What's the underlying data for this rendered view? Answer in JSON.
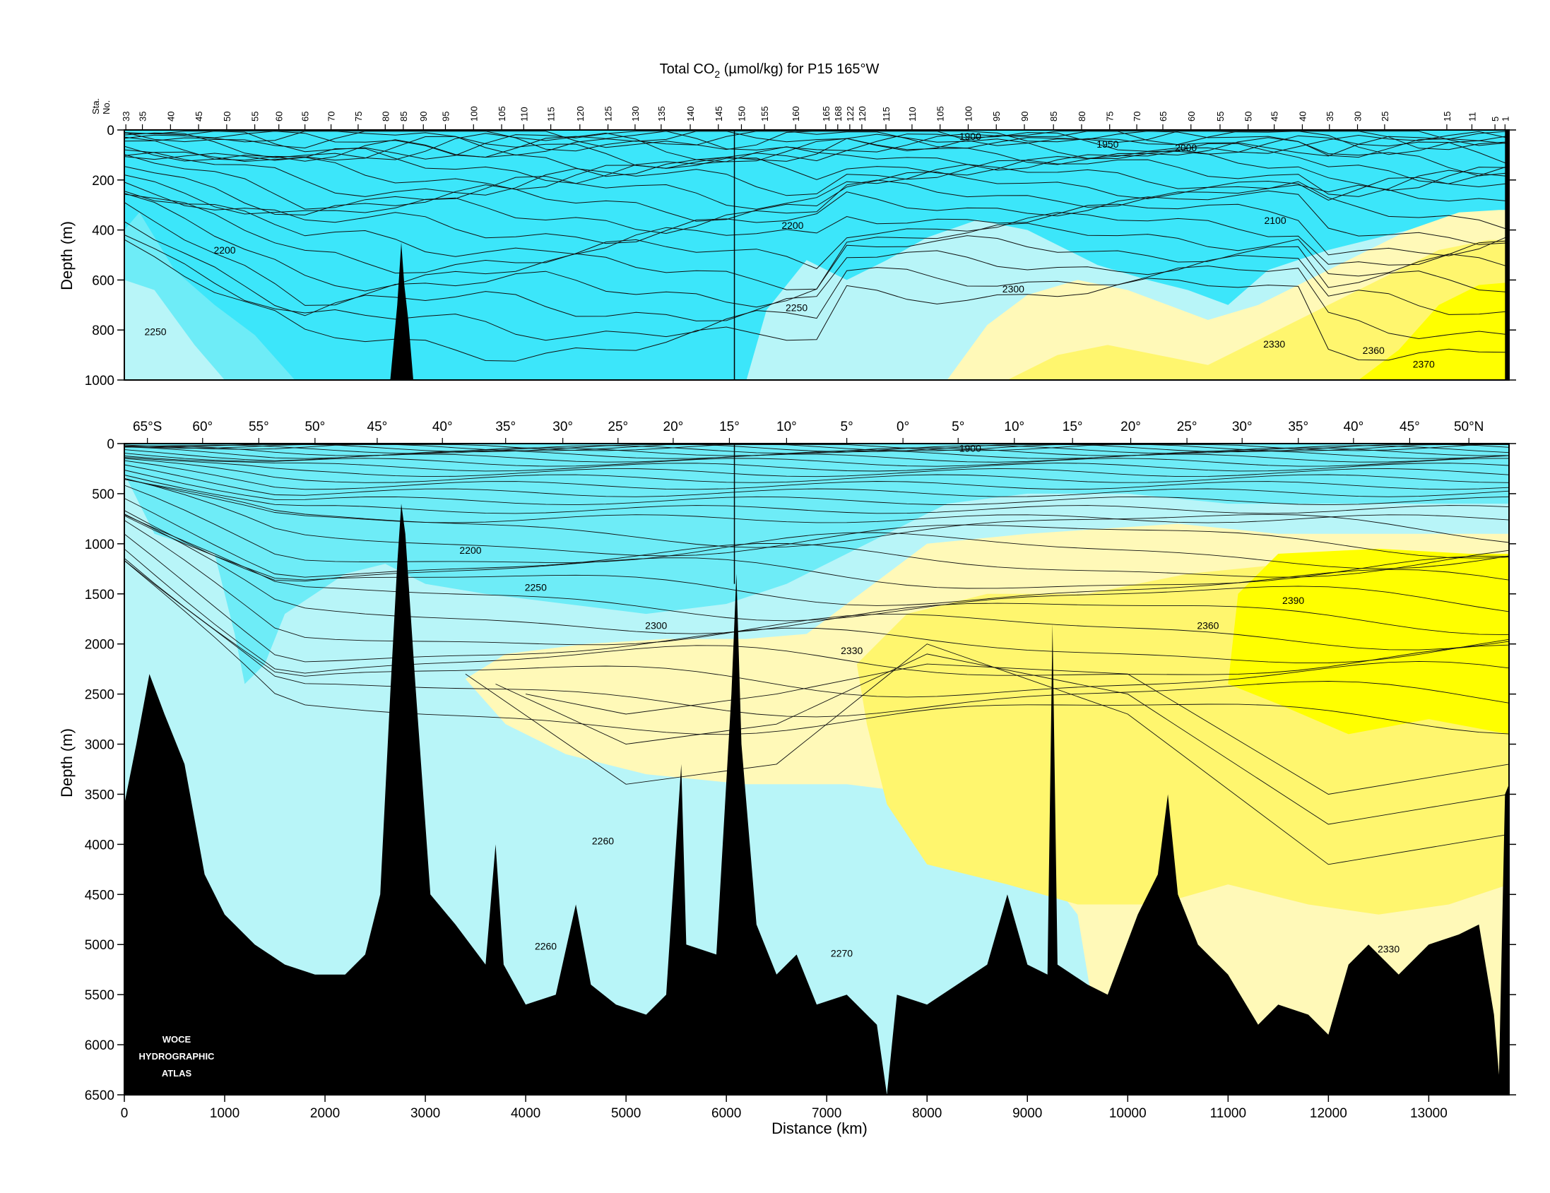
{
  "chart_data": {
    "type": "contour-section",
    "title_main": "Total CO",
    "title_sub": "2",
    "title_rest": " (µmol/kg) for P15 165°W",
    "xlabel": "Distance (km)",
    "ylabel": "Depth (m)",
    "xlim": [
      0,
      13800
    ],
    "x_ticks": [
      0,
      1000,
      2000,
      3000,
      4000,
      5000,
      6000,
      7000,
      8000,
      9000,
      10000,
      11000,
      12000,
      13000
    ],
    "x_tick_labels": [
      "0",
      "1000",
      "2000",
      "3000",
      "4000",
      "5000",
      "6000",
      "7000",
      "8000",
      "9000",
      "10000",
      "11000",
      "12000",
      "13000"
    ],
    "station_axis_label_1": "Sta.",
    "station_axis_label_2": "No.",
    "stations": [
      {
        "label": "33",
        "x": 15
      },
      {
        "label": "35",
        "x": 180
      },
      {
        "label": "40",
        "x": 460
      },
      {
        "label": "45",
        "x": 740
      },
      {
        "label": "50",
        "x": 1020
      },
      {
        "label": "55",
        "x": 1300
      },
      {
        "label": "60",
        "x": 1540
      },
      {
        "label": "65",
        "x": 1800
      },
      {
        "label": "70",
        "x": 2060
      },
      {
        "label": "75",
        "x": 2330
      },
      {
        "label": "80",
        "x": 2600
      },
      {
        "label": "85",
        "x": 2780
      },
      {
        "label": "90",
        "x": 2980
      },
      {
        "label": "95",
        "x": 3200
      },
      {
        "label": "100",
        "x": 3480
      },
      {
        "label": "105",
        "x": 3760
      },
      {
        "label": "110",
        "x": 3980
      },
      {
        "label": "115",
        "x": 4250
      },
      {
        "label": "120",
        "x": 4540
      },
      {
        "label": "125",
        "x": 4820
      },
      {
        "label": "130",
        "x": 5090
      },
      {
        "label": "135",
        "x": 5350
      },
      {
        "label": "140",
        "x": 5640
      },
      {
        "label": "145",
        "x": 5920
      },
      {
        "label": "150",
        "x": 6150
      },
      {
        "label": "155",
        "x": 6380
      },
      {
        "label": "160",
        "x": 6690
      },
      {
        "label": "165",
        "x": 6990
      },
      {
        "label": "168",
        "x": 7110
      },
      {
        "label": "122",
        "x": 7230
      },
      {
        "label": "120",
        "x": 7350
      },
      {
        "label": "115",
        "x": 7590
      },
      {
        "label": "110",
        "x": 7850
      },
      {
        "label": "105",
        "x": 8130
      },
      {
        "label": "100",
        "x": 8410
      },
      {
        "label": "95",
        "x": 8690
      },
      {
        "label": "90",
        "x": 8970
      },
      {
        "label": "85",
        "x": 9260
      },
      {
        "label": "80",
        "x": 9540
      },
      {
        "label": "75",
        "x": 9820
      },
      {
        "label": "70",
        "x": 10090
      },
      {
        "label": "65",
        "x": 10350
      },
      {
        "label": "60",
        "x": 10630
      },
      {
        "label": "55",
        "x": 10920
      },
      {
        "label": "50",
        "x": 11200
      },
      {
        "label": "45",
        "x": 11460
      },
      {
        "label": "40",
        "x": 11740
      },
      {
        "label": "35",
        "x": 12010
      },
      {
        "label": "30",
        "x": 12290
      },
      {
        "label": "25",
        "x": 12560
      },
      {
        "label": "15",
        "x": 13180
      },
      {
        "label": "11",
        "x": 13430
      },
      {
        "label": "5",
        "x": 13660
      },
      {
        "label": "1",
        "x": 13760
      }
    ],
    "latitudes": [
      {
        "label": "65°S",
        "x": 230
      },
      {
        "label": "60°",
        "x": 780
      },
      {
        "label": "55°",
        "x": 1340
      },
      {
        "label": "50°",
        "x": 1900
      },
      {
        "label": "45°",
        "x": 2520
      },
      {
        "label": "40°",
        "x": 3170
      },
      {
        "label": "35°",
        "x": 3800
      },
      {
        "label": "30°",
        "x": 4370
      },
      {
        "label": "25°",
        "x": 4920
      },
      {
        "label": "20°",
        "x": 5470
      },
      {
        "label": "15°",
        "x": 6030
      },
      {
        "label": "10°",
        "x": 6600
      },
      {
        "label": "5°",
        "x": 7200
      },
      {
        "label": "0°",
        "x": 7760
      },
      {
        "label": "5°",
        "x": 8310
      },
      {
        "label": "10°",
        "x": 8870
      },
      {
        "label": "15°",
        "x": 9450
      },
      {
        "label": "20°",
        "x": 10030
      },
      {
        "label": "25°",
        "x": 10590
      },
      {
        "label": "30°",
        "x": 11140
      },
      {
        "label": "35°",
        "x": 11700
      },
      {
        "label": "40°",
        "x": 12250
      },
      {
        "label": "45°",
        "x": 12810
      },
      {
        "label": "50°N",
        "x": 13400
      }
    ],
    "panels": [
      {
        "name": "upper",
        "ylim": [
          0,
          1000
        ],
        "y_ticks": [
          0,
          200,
          400,
          600,
          800,
          1000
        ],
        "y_tick_labels": [
          "0",
          "200",
          "400",
          "600",
          "800",
          "1000"
        ],
        "contour_labels": [
          {
            "text": "1900",
            "x": 8430,
            "y": 40
          },
          {
            "text": "1950",
            "x": 9800,
            "y": 70
          },
          {
            "text": "2000",
            "x": 10580,
            "y": 85
          },
          {
            "text": "2100",
            "x": 11470,
            "y": 375
          },
          {
            "text": "2200",
            "x": 1000,
            "y": 495
          },
          {
            "text": "2200",
            "x": 6660,
            "y": 395
          },
          {
            "text": "2250",
            "x": 6700,
            "y": 725
          },
          {
            "text": "2250",
            "x": 310,
            "y": 820
          },
          {
            "text": "2300",
            "x": 8860,
            "y": 650
          },
          {
            "text": "2330",
            "x": 11460,
            "y": 870
          },
          {
            "text": "2360",
            "x": 12450,
            "y": 895
          },
          {
            "text": "2370",
            "x": 12950,
            "y": 950
          }
        ]
      },
      {
        "name": "lower",
        "ylim": [
          0,
          6500
        ],
        "y_ticks": [
          0,
          500,
          1000,
          1500,
          2000,
          2500,
          3000,
          3500,
          4000,
          4500,
          5000,
          5500,
          6000,
          6500
        ],
        "y_tick_labels": [
          "0",
          "500",
          "1000",
          "1500",
          "2000",
          "2500",
          "3000",
          "3500",
          "4000",
          "4500",
          "5000",
          "5500",
          "6000",
          "6500"
        ],
        "contour_labels": [
          {
            "text": "1900",
            "x": 8430,
            "y": 80
          },
          {
            "text": "2200",
            "x": 3450,
            "y": 1100
          },
          {
            "text": "2250",
            "x": 4100,
            "y": 1470
          },
          {
            "text": "2300",
            "x": 5300,
            "y": 1850
          },
          {
            "text": "2330",
            "x": 7250,
            "y": 2100
          },
          {
            "text": "2360",
            "x": 10800,
            "y": 1850
          },
          {
            "text": "2390",
            "x": 11650,
            "y": 1600
          },
          {
            "text": "2260",
            "x": 4770,
            "y": 4000
          },
          {
            "text": "2260",
            "x": 4200,
            "y": 5050
          },
          {
            "text": "2270",
            "x": 7150,
            "y": 5120
          },
          {
            "text": "2330",
            "x": 12600,
            "y": 5080
          }
        ]
      }
    ],
    "color_classes": [
      {
        "min": 1800,
        "max": 2200,
        "color": "#3ce6fa"
      },
      {
        "min": 2200,
        "max": 2250,
        "color": "#6eecf7"
      },
      {
        "min": 2250,
        "max": 2300,
        "color": "#b8f5f8"
      },
      {
        "min": 2300,
        "max": 2330,
        "color": "#fff9b8"
      },
      {
        "min": 2330,
        "max": 2360,
        "color": "#fff66e"
      },
      {
        "min": 2360,
        "max": 2400,
        "color": "#ffff00"
      }
    ],
    "colors": {
      "bathymetry": "#000000",
      "contour": "#111111",
      "frame": "#000000"
    },
    "logo_lines": [
      "WOCE",
      "HYDROGRAPHIC",
      "ATLAS"
    ]
  }
}
